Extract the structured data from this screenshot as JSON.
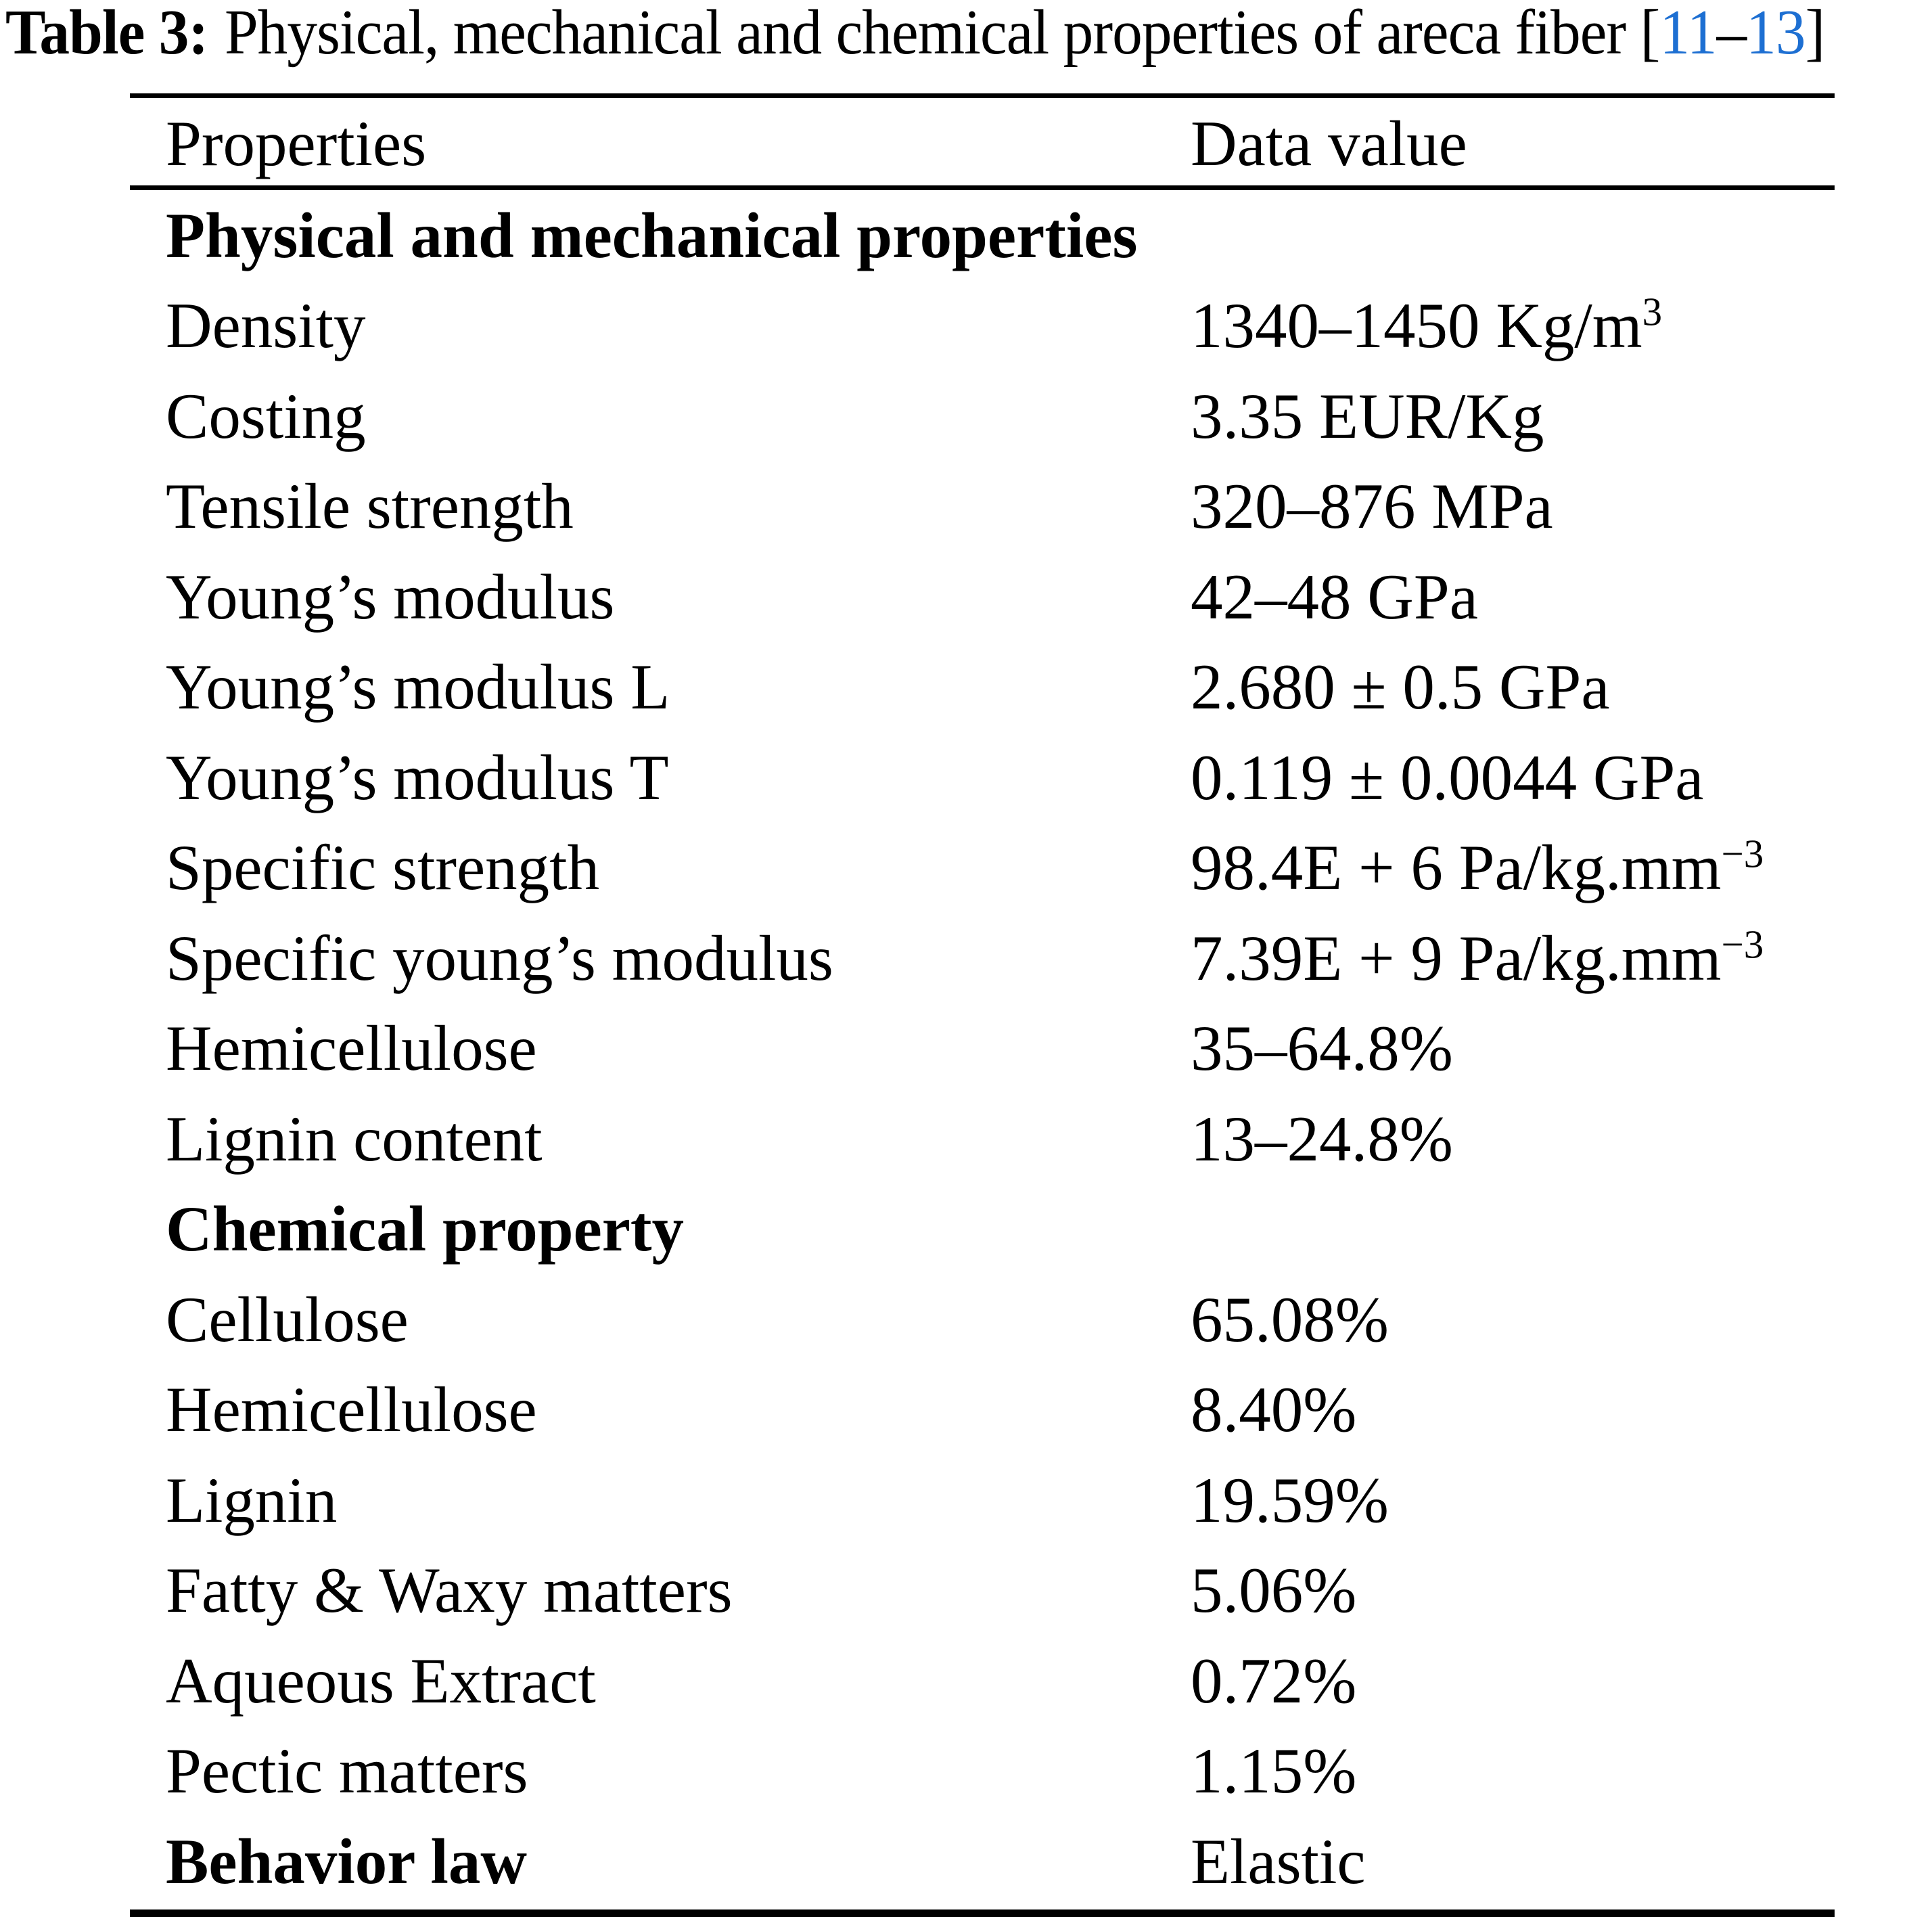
{
  "title": {
    "label": "Table 3:",
    "text": "Physical, mechanical and chemical properties of areca fiber ",
    "bracket_open": "[",
    "ref_start": "11",
    "ref_dash": "–",
    "ref_end": "13",
    "bracket_close": "]",
    "link_color": "#1d6fd2",
    "text_color": "#000000",
    "background_color": "#ffffff"
  },
  "table": {
    "header": {
      "properties": "Properties",
      "value": "Data value"
    },
    "rows": [
      {
        "property": "Physical and mechanical properties",
        "value": ""
      },
      {
        "property": "Density",
        "value": "1340–1450 Kg/m",
        "value_sup": "3"
      },
      {
        "property": "Costing",
        "value": "3.35 EUR/Kg"
      },
      {
        "property": "Tensile strength",
        "value": "320–876 MPa"
      },
      {
        "property": "Young’s modulus",
        "value": "42–48 GPa"
      },
      {
        "property": "Young’s modulus L",
        "value": "2.680 ± 0.5 GPa"
      },
      {
        "property": "Young’s modulus T",
        "value": "0.119 ± 0.0044 GPa"
      },
      {
        "property": "Specific strength",
        "value": "98.4E + 6 Pa/kg.mm",
        "value_sup": "−3"
      },
      {
        "property": "Specific young’s modulus",
        "value": "7.39E + 9 Pa/kg.mm",
        "value_sup": "−3"
      },
      {
        "property": "Hemicellulose",
        "value": "35–64.8%"
      },
      {
        "property": "Lignin content",
        "value": "13–24.8%"
      },
      {
        "property": "Chemical property",
        "value": ""
      },
      {
        "property": "Cellulose",
        "value": "65.08%"
      },
      {
        "property": "Hemicellulose",
        "value": "8.40%"
      },
      {
        "property": "Lignin",
        "value": "19.59%"
      },
      {
        "property": "Fatty & Waxy matters",
        "value": "5.06%"
      },
      {
        "property": "Aqueous Extract",
        "value": "0.72%"
      },
      {
        "property": "Pectic matters",
        "value": "1.15%"
      },
      {
        "property": "Behavior law",
        "value": "Elastic"
      }
    ]
  }
}
